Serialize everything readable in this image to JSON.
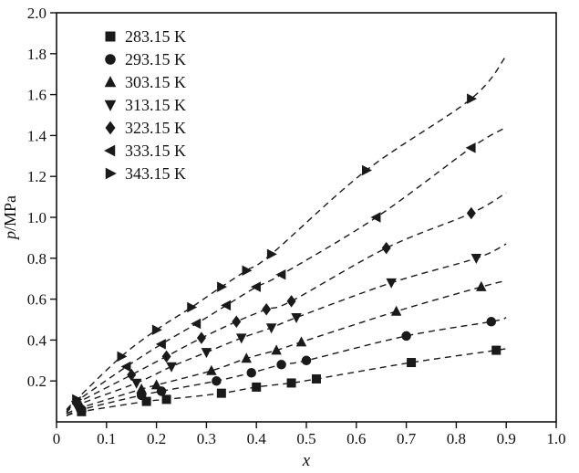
{
  "chart_data": {
    "type": "scatter",
    "title": "",
    "xlabel": "x",
    "ylabel": "p/MPa",
    "xlim": [
      0,
      1.0
    ],
    "ylim": [
      0,
      2.0
    ],
    "grid": false,
    "legend_position": "top-left",
    "marker_color": "#1a1a1a",
    "curve_color": "#1a1a1a",
    "curve_style": "dashed",
    "x_ticks": [
      0,
      0.1,
      0.2,
      0.3,
      0.4,
      0.5,
      0.6,
      0.7,
      0.8,
      0.9,
      1.0
    ],
    "x_tick_labels": [
      "0",
      "0.1",
      "0.2",
      "0.3",
      "0.4",
      "0.5",
      "0.6",
      "0.7",
      "0.8",
      "0.9",
      "1.0"
    ],
    "y_ticks": [
      0.2,
      0.4,
      0.6,
      0.8,
      1.0,
      1.2,
      1.4,
      1.6,
      1.8,
      2.0
    ],
    "y_tick_labels": [
      "0.2",
      "0.4",
      "0.6",
      "0.8",
      "1.0",
      "1.2",
      "1.4",
      "1.6",
      "1.8",
      "2.0"
    ],
    "series": [
      {
        "name": "283.15 K",
        "marker": "square",
        "points": [
          [
            0.05,
            0.05
          ],
          [
            0.18,
            0.1
          ],
          [
            0.22,
            0.11
          ],
          [
            0.33,
            0.14
          ],
          [
            0.4,
            0.17
          ],
          [
            0.47,
            0.19
          ],
          [
            0.52,
            0.21
          ],
          [
            0.71,
            0.29
          ],
          [
            0.88,
            0.35
          ]
        ],
        "curve_start": [
          0.02,
          0.03
        ],
        "curve_end": [
          0.9,
          0.36
        ]
      },
      {
        "name": "293.15 K",
        "marker": "circle",
        "points": [
          [
            0.05,
            0.06
          ],
          [
            0.17,
            0.13
          ],
          [
            0.21,
            0.15
          ],
          [
            0.32,
            0.2
          ],
          [
            0.39,
            0.24
          ],
          [
            0.45,
            0.28
          ],
          [
            0.5,
            0.3
          ],
          [
            0.7,
            0.42
          ],
          [
            0.87,
            0.49
          ]
        ],
        "curve_start": [
          0.02,
          0.03
        ],
        "curve_end": [
          0.9,
          0.51
        ]
      },
      {
        "name": "303.15 K",
        "marker": "triangle-up",
        "points": [
          [
            0.05,
            0.07
          ],
          [
            0.17,
            0.16
          ],
          [
            0.2,
            0.18
          ],
          [
            0.31,
            0.25
          ],
          [
            0.38,
            0.31
          ],
          [
            0.44,
            0.35
          ],
          [
            0.49,
            0.39
          ],
          [
            0.68,
            0.54
          ],
          [
            0.85,
            0.66
          ]
        ],
        "curve_start": [
          0.02,
          0.04
        ],
        "curve_end": [
          0.9,
          0.69
        ]
      },
      {
        "name": "313.15 K",
        "marker": "triangle-down",
        "points": [
          [
            0.04,
            0.08
          ],
          [
            0.16,
            0.19
          ],
          [
            0.23,
            0.27
          ],
          [
            0.3,
            0.34
          ],
          [
            0.37,
            0.41
          ],
          [
            0.43,
            0.46
          ],
          [
            0.48,
            0.51
          ],
          [
            0.67,
            0.68
          ],
          [
            0.84,
            0.8
          ]
        ],
        "curve_start": [
          0.02,
          0.04
        ],
        "curve_end": [
          0.9,
          0.87
        ]
      },
      {
        "name": "323.15 K",
        "marker": "diamond",
        "points": [
          [
            0.04,
            0.09
          ],
          [
            0.15,
            0.23
          ],
          [
            0.22,
            0.32
          ],
          [
            0.29,
            0.41
          ],
          [
            0.36,
            0.49
          ],
          [
            0.42,
            0.55
          ],
          [
            0.47,
            0.59
          ],
          [
            0.66,
            0.85
          ],
          [
            0.83,
            1.02
          ]
        ],
        "curve_start": [
          0.02,
          0.05
        ],
        "curve_end": [
          0.9,
          1.12
        ]
      },
      {
        "name": "333.15 K",
        "marker": "triangle-left",
        "points": [
          [
            0.04,
            0.1
          ],
          [
            0.14,
            0.27
          ],
          [
            0.21,
            0.38
          ],
          [
            0.28,
            0.48
          ],
          [
            0.34,
            0.57
          ],
          [
            0.4,
            0.66
          ],
          [
            0.45,
            0.72
          ],
          [
            0.64,
            1.0
          ],
          [
            0.83,
            1.34
          ]
        ],
        "curve_start": [
          0.02,
          0.05
        ],
        "curve_end": [
          0.9,
          1.44
        ]
      },
      {
        "name": "343.15 K",
        "marker": "triangle-right",
        "points": [
          [
            0.04,
            0.11
          ],
          [
            0.13,
            0.32
          ],
          [
            0.2,
            0.45
          ],
          [
            0.27,
            0.56
          ],
          [
            0.33,
            0.66
          ],
          [
            0.38,
            0.74
          ],
          [
            0.43,
            0.82
          ],
          [
            0.62,
            1.23
          ],
          [
            0.83,
            1.58
          ]
        ],
        "curve_start": [
          0.02,
          0.06
        ],
        "curve_end": [
          0.9,
          1.79
        ]
      }
    ]
  }
}
